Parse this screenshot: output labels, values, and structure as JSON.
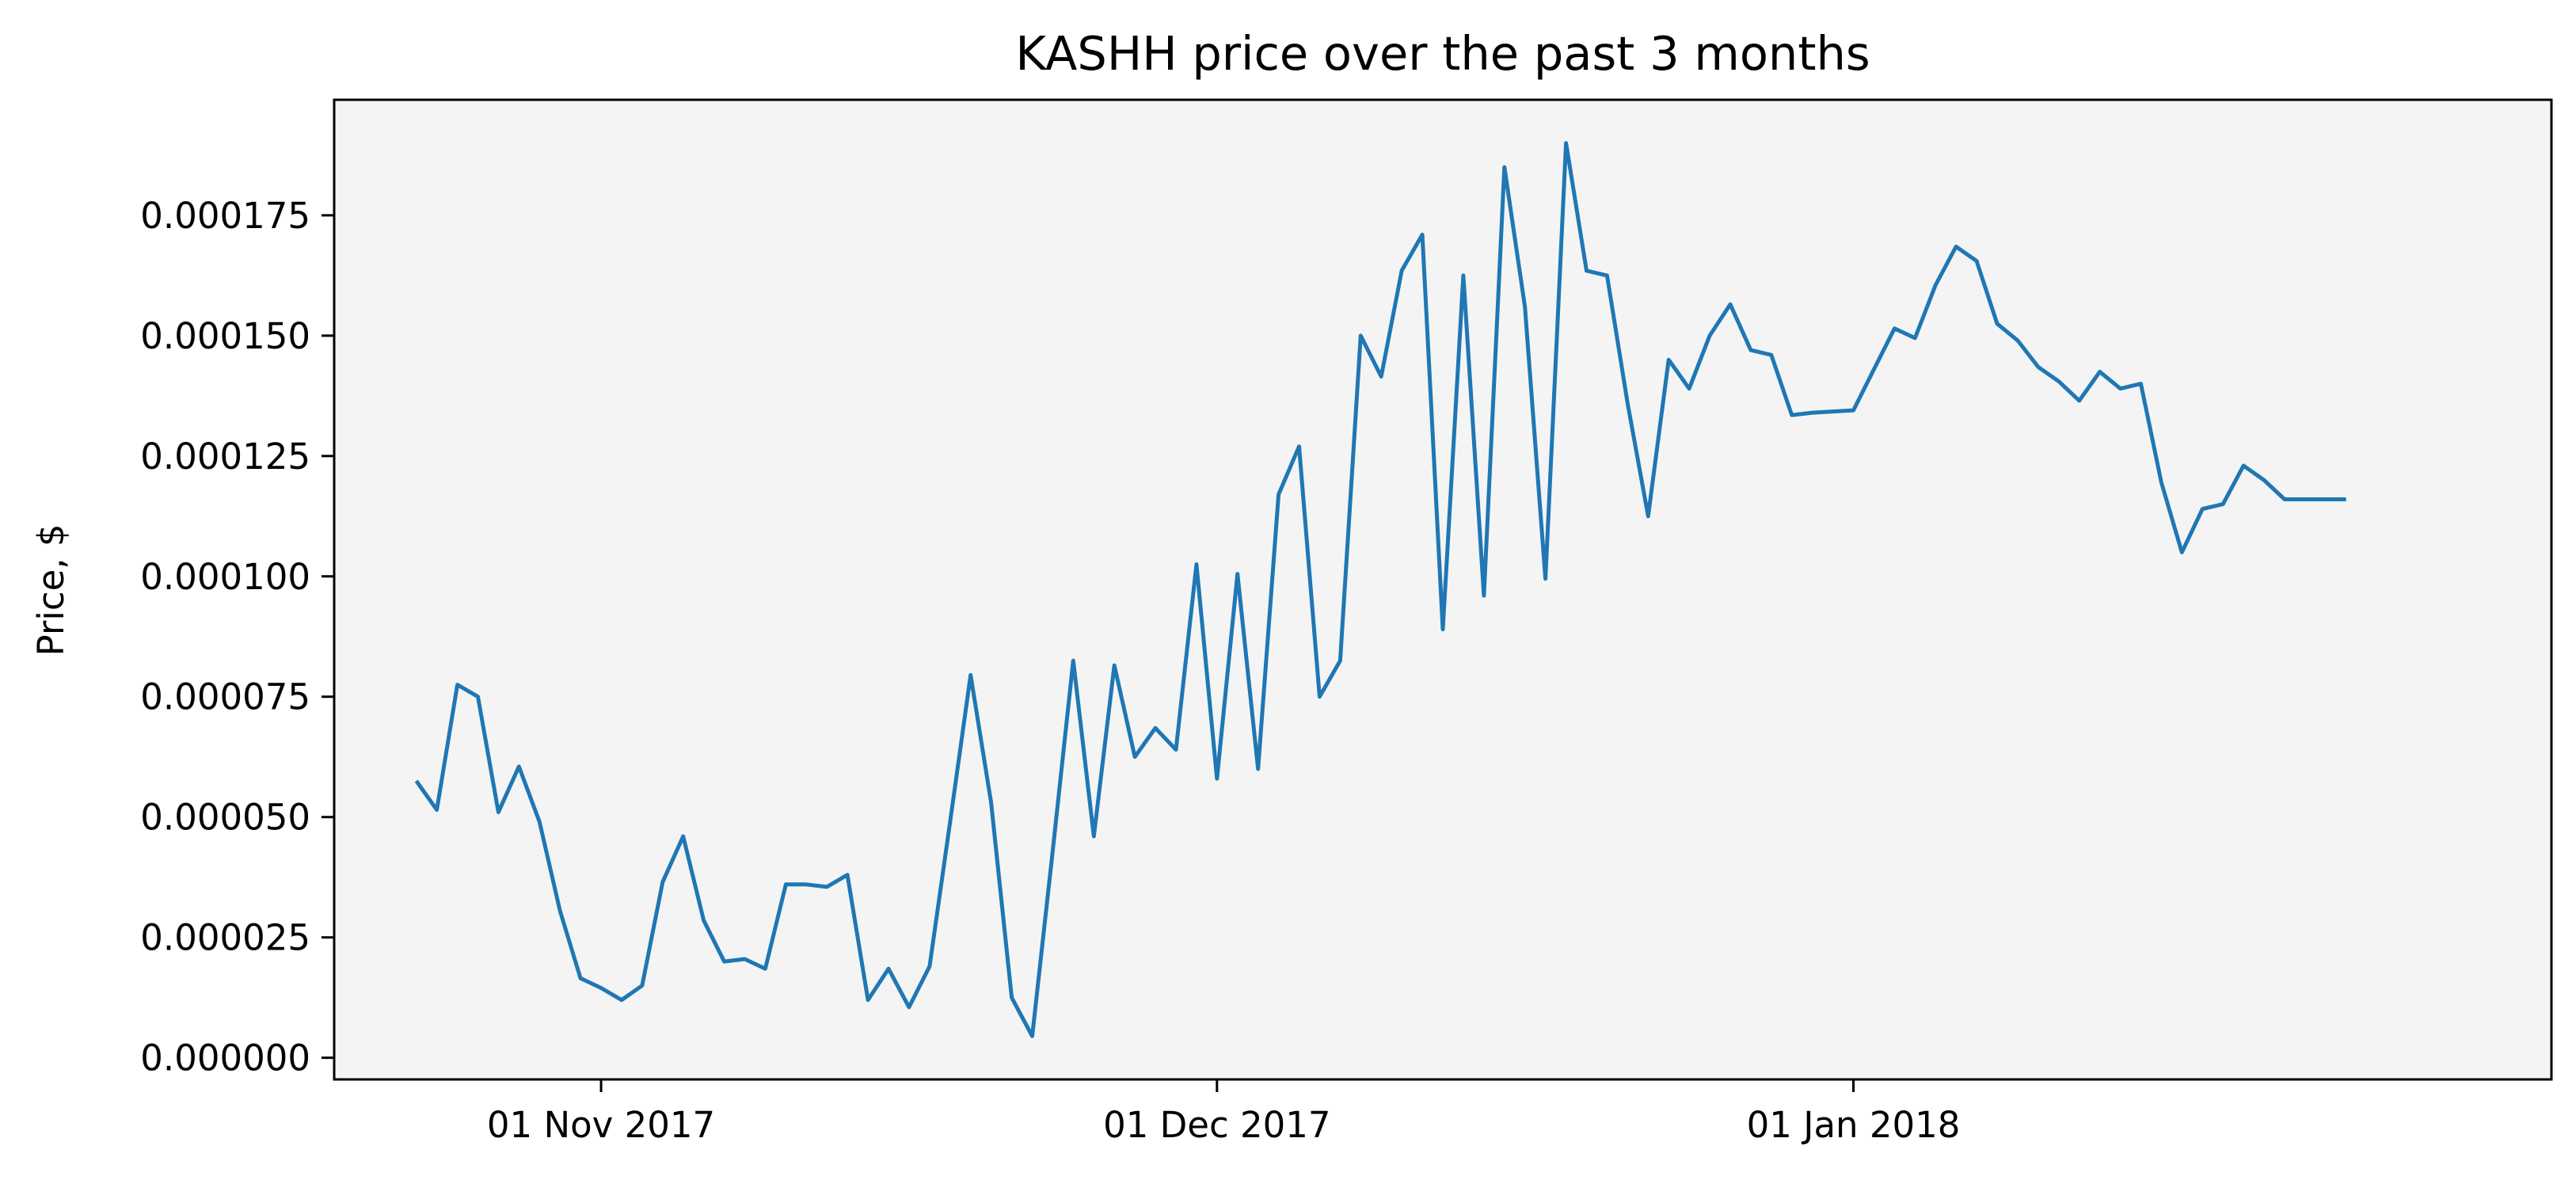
{
  "chart_data": {
    "type": "line",
    "title": "KASHH price over the past 3 months",
    "xlabel": "",
    "ylabel": "Price, $",
    "x_ticks": [
      {
        "date": "2017-11-01",
        "label": "01 Nov 2017"
      },
      {
        "date": "2017-12-01",
        "label": "01 Dec 2017"
      },
      {
        "date": "2018-01-01",
        "label": "01 Jan 2018"
      }
    ],
    "y_ticks": [
      {
        "value": 0.0,
        "label": "0.000000"
      },
      {
        "value": 2.5e-05,
        "label": "0.000025"
      },
      {
        "value": 5e-05,
        "label": "0.000050"
      },
      {
        "value": 7.5e-05,
        "label": "0.000075"
      },
      {
        "value": 0.0001,
        "label": "0.000100"
      },
      {
        "value": 0.000125,
        "label": "0.000125"
      },
      {
        "value": 0.00015,
        "label": "0.000150"
      },
      {
        "value": 0.000175,
        "label": "0.000175"
      }
    ],
    "xlim": [
      "2017-10-19",
      "2018-02-04"
    ],
    "ylim": [
      -4.5e-06,
      0.000199
    ],
    "grid": false,
    "legend": "none",
    "background_color": "#f4f4f4",
    "line_color": "#1f77b4",
    "series": [
      {
        "x": [
          "2017-10-23",
          "2017-10-24",
          "2017-10-25",
          "2017-10-26",
          "2017-10-27",
          "2017-10-28",
          "2017-10-29",
          "2017-10-30",
          "2017-10-31",
          "2017-11-01",
          "2017-11-02",
          "2017-11-03",
          "2017-11-04",
          "2017-11-05",
          "2017-11-06",
          "2017-11-07",
          "2017-11-08",
          "2017-11-09",
          "2017-11-10",
          "2017-11-11",
          "2017-11-12",
          "2017-11-13",
          "2017-11-14",
          "2017-11-15",
          "2017-11-16",
          "2017-11-17",
          "2017-11-18",
          "2017-11-19",
          "2017-11-20",
          "2017-11-21",
          "2017-11-22",
          "2017-11-23",
          "2017-11-24",
          "2017-11-25",
          "2017-11-26",
          "2017-11-27",
          "2017-11-28",
          "2017-11-29",
          "2017-11-30",
          "2017-12-01",
          "2017-12-02",
          "2017-12-03",
          "2017-12-04",
          "2017-12-05",
          "2017-12-06",
          "2017-12-07",
          "2017-12-08",
          "2017-12-09",
          "2017-12-10",
          "2017-12-11",
          "2017-12-12",
          "2017-12-13",
          "2017-12-14",
          "2017-12-15",
          "2017-12-16",
          "2017-12-17",
          "2017-12-18",
          "2017-12-19",
          "2017-12-20",
          "2017-12-21",
          "2017-12-22",
          "2017-12-23",
          "2017-12-24",
          "2017-12-25",
          "2017-12-26",
          "2017-12-27",
          "2017-12-28",
          "2017-12-29",
          "2017-12-30",
          "2018-01-01",
          "2018-01-02",
          "2018-01-03",
          "2018-01-04",
          "2018-01-05",
          "2018-01-06",
          "2018-01-07",
          "2018-01-08",
          "2018-01-09",
          "2018-01-10",
          "2018-01-11",
          "2018-01-12",
          "2018-01-13",
          "2018-01-14",
          "2018-01-15",
          "2018-01-16",
          "2018-01-17",
          "2018-01-18",
          "2018-01-19",
          "2018-01-20",
          "2018-01-21",
          "2018-01-22",
          "2018-01-23",
          "2018-01-24",
          "2018-01-25"
        ],
        "values": [
          5.75e-05,
          5.15e-05,
          7.75e-05,
          7.5e-05,
          5.1e-05,
          6.05e-05,
          4.9e-05,
          3.05e-05,
          1.65e-05,
          1.45e-05,
          1.2e-05,
          1.5e-05,
          3.65e-05,
          4.6e-05,
          2.85e-05,
          2e-05,
          2.05e-05,
          1.85e-05,
          3.6e-05,
          3.6e-05,
          3.55e-05,
          3.8e-05,
          1.2e-05,
          1.85e-05,
          1.05e-05,
          1.9e-05,
          4.9e-05,
          7.95e-05,
          5.3e-05,
          1.25e-05,
          4.5e-06,
          4.3e-05,
          8.25e-05,
          4.6e-05,
          8.15e-05,
          6.25e-05,
          6.85e-05,
          6.4e-05,
          0.0001025,
          5.8e-05,
          0.0001005,
          6e-05,
          0.000117,
          0.000127,
          7.5e-05,
          8.25e-05,
          0.00015,
          0.0001415,
          0.0001635,
          0.000171,
          8.9e-05,
          0.0001625,
          9.6e-05,
          0.000185,
          0.000156,
          9.95e-05,
          0.00019,
          0.0001635,
          0.0001625,
          0.000136,
          0.0001125,
          0.000145,
          0.000139,
          0.00015,
          0.0001565,
          0.000147,
          0.000146,
          0.0001335,
          0.000134,
          0.0001345,
          0.000143,
          0.0001515,
          0.0001495,
          0.0001605,
          0.0001685,
          0.0001655,
          0.0001525,
          0.000149,
          0.0001435,
          0.0001405,
          0.0001365,
          0.0001425,
          0.000139,
          0.00014,
          0.0001195,
          0.000105,
          0.000114,
          0.000115,
          0.000123,
          0.00012,
          0.000116,
          0.000116,
          0.000116,
          0.000116
        ]
      }
    ]
  }
}
